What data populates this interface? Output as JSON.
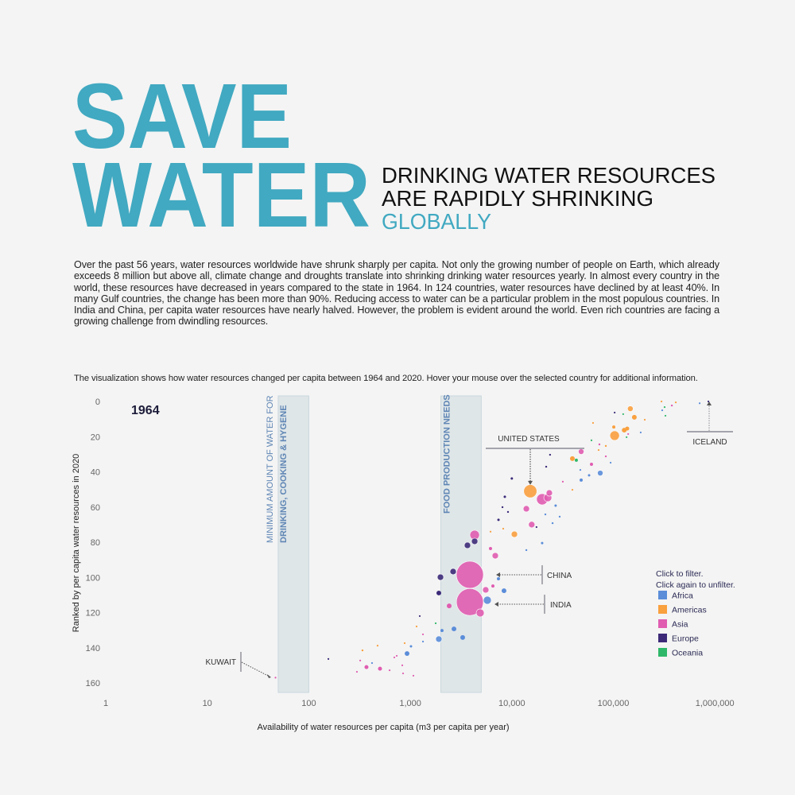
{
  "header": {
    "title_line1": "SAVE",
    "title_line2": "WATER",
    "subtitle_line1": "DRINKING WATER RESOURCES",
    "subtitle_line2": "ARE RAPIDLY SHRINKING",
    "subtitle_line3": "GLOBALLY",
    "accent_color": "#41a9c1"
  },
  "paragraph": "Over the past 56 years, water resources worldwide have shrunk sharply per capita. Not only the growing number of people on Earth, which already exceeds 8 million but above all, climate change and droughts translate into shrinking drinking water resources yearly. In almost every country in the world, these resources have decreased in years compared to the state in 1964. In 124 countries, water resources have declined by at least 40%. In many Gulf countries, the change has been more than 90%. Reducing access to water can be a particular problem in the most populous countries. In India and China, per capita water resources have nearly halved. However, the problem is evident around the world. Even rich countries are facing a growing challenge from dwindling resources.",
  "intro": "The visualization shows how water resources changed per capita between 1964 and 2020. Hover your mouse over the selected country for additional information.",
  "chart_data": {
    "type": "scatter",
    "year_label": "1964",
    "xlabel": "Availability of water resources per capita (m3 per capita per year)",
    "ylabel": "Ranked by per capita water resources in 2020",
    "x_scale": "log",
    "xlim": [
      1,
      1000000
    ],
    "ylim": [
      0,
      165
    ],
    "y_reversed": true,
    "x_ticks": [
      {
        "v": 1,
        "label": "1"
      },
      {
        "v": 10,
        "label": "10"
      },
      {
        "v": 100,
        "label": "100"
      },
      {
        "v": 1000,
        "label": "1,000"
      },
      {
        "v": 10000,
        "label": "10,000"
      },
      {
        "v": 100000,
        "label": "100,000"
      },
      {
        "v": 1000000,
        "label": "1,000,000"
      }
    ],
    "y_ticks": [
      0,
      20,
      40,
      60,
      80,
      100,
      120,
      140,
      160
    ],
    "bands": [
      {
        "from": 50,
        "to": 100,
        "label_line1": "MINIMUM AMOUNT OF WATER FOR",
        "label_line2": "DRINKING, COOKING & HYGENE"
      },
      {
        "from": 2000,
        "to": 5000,
        "label_line1": "FOOD PRODUCTION NEEDS"
      }
    ],
    "annotations": [
      {
        "label": "UNITED STATES",
        "x": 15200,
        "y": 51
      },
      {
        "label": "ICELAND",
        "x": 863000,
        "y": 0
      },
      {
        "label": "CHINA",
        "x": 3863,
        "y": 98.5
      },
      {
        "label": "INDIA",
        "x": 3863,
        "y": 114
      },
      {
        "label": "KUWAIT",
        "x": 47,
        "y": 157
      }
    ],
    "legend": {
      "hint_line1": "Click to filter.",
      "hint_line2": "Click again to unfilter.",
      "placement": "right",
      "items": [
        {
          "key": "A",
          "label": "Africa",
          "color": "#5b8dd9"
        },
        {
          "key": "M",
          "label": "Americas",
          "color": "#f9a03f"
        },
        {
          "key": "S",
          "label": "Asia",
          "color": "#e05cb0"
        },
        {
          "key": "E",
          "label": "Europe",
          "color": "#3c2a78"
        },
        {
          "key": "O",
          "label": "Oceania",
          "color": "#2fb86a"
        }
      ]
    },
    "size_field": "population_millions",
    "points": [
      {
        "x": 3863,
        "y": 98.5,
        "r": "S",
        "p": 1400
      },
      {
        "x": 3863,
        "y": 114,
        "r": "S",
        "p": 1380
      },
      {
        "x": 15200,
        "y": 51,
        "r": "M",
        "p": 330
      },
      {
        "x": 103000,
        "y": 19.4,
        "r": "M",
        "p": 174
      },
      {
        "x": 19900,
        "y": 55.6,
        "r": "S",
        "p": 240
      },
      {
        "x": 22600,
        "y": 54.7,
        "r": "S",
        "p": 121
      },
      {
        "x": 23400,
        "y": 52,
        "r": "S",
        "p": 77
      },
      {
        "x": 74300,
        "y": 40.7,
        "r": "A",
        "p": 60
      },
      {
        "x": 48200,
        "y": 28.5,
        "r": "S",
        "p": 60
      },
      {
        "x": 39500,
        "y": 32.5,
        "r": "M",
        "p": 43
      },
      {
        "x": 43200,
        "y": 33.4,
        "r": "O",
        "p": 19
      },
      {
        "x": 147000,
        "y": 4.1,
        "r": "M",
        "p": 60
      },
      {
        "x": 161000,
        "y": 9,
        "r": "M",
        "p": 43
      },
      {
        "x": 128000,
        "y": 16.3,
        "r": "M",
        "p": 43
      },
      {
        "x": 137000,
        "y": 15.4,
        "r": "M",
        "p": 30
      },
      {
        "x": 101000,
        "y": 14.5,
        "r": "M",
        "p": 19
      },
      {
        "x": 13900,
        "y": 61,
        "r": "S",
        "p": 77
      },
      {
        "x": 15700,
        "y": 70,
        "r": "S",
        "p": 77
      },
      {
        "x": 10600,
        "y": 75.5,
        "r": "M",
        "p": 77
      },
      {
        "x": 4304,
        "y": 75.9,
        "r": "S",
        "p": 174
      },
      {
        "x": 4304,
        "y": 79.5,
        "r": "E",
        "p": 77
      },
      {
        "x": 3656,
        "y": 81.8,
        "r": "E",
        "p": 77
      },
      {
        "x": 6871,
        "y": 87.7,
        "r": "S",
        "p": 77
      },
      {
        "x": 6166,
        "y": 83.6,
        "r": "S",
        "p": 19
      },
      {
        "x": 2642,
        "y": 96.7,
        "r": "E",
        "p": 77
      },
      {
        "x": 1982,
        "y": 99.9,
        "r": "E",
        "p": 77
      },
      {
        "x": 1910,
        "y": 108.9,
        "r": "E",
        "p": 43
      },
      {
        "x": 5534,
        "y": 107.1,
        "r": "S",
        "p": 77
      },
      {
        "x": 4880,
        "y": 120.2,
        "r": "S",
        "p": 121
      },
      {
        "x": 5740,
        "y": 113,
        "r": "A",
        "p": 121
      },
      {
        "x": 8375,
        "y": 107.6,
        "r": "A",
        "p": 43
      },
      {
        "x": 7385,
        "y": 100.8,
        "r": "A",
        "p": 19
      },
      {
        "x": 2692,
        "y": 129.3,
        "r": "A",
        "p": 43
      },
      {
        "x": 3281,
        "y": 134.2,
        "r": "A",
        "p": 43
      },
      {
        "x": 1910,
        "y": 135.1,
        "r": "A",
        "p": 77
      },
      {
        "x": 2052,
        "y": 130.2,
        "r": "A",
        "p": 19
      },
      {
        "x": 2415,
        "y": 116.2,
        "r": "S",
        "p": 43
      },
      {
        "x": 6511,
        "y": 104.9,
        "r": "S",
        "p": 19
      },
      {
        "x": 47,
        "y": 157,
        "r": "S",
        "p": 5
      },
      {
        "x": 156,
        "y": 146.4,
        "r": "E",
        "p": 5
      },
      {
        "x": 338,
        "y": 141.5,
        "r": "M",
        "p": 7
      },
      {
        "x": 476,
        "y": 138.8,
        "r": "M",
        "p": 5
      },
      {
        "x": 880,
        "y": 137.4,
        "r": "M",
        "p": 5
      },
      {
        "x": 1153,
        "y": 127.9,
        "r": "M",
        "p": 5
      },
      {
        "x": 929,
        "y": 143.3,
        "r": "A",
        "p": 43
      },
      {
        "x": 1016,
        "y": 139.2,
        "r": "A",
        "p": 11
      },
      {
        "x": 420,
        "y": 148.7,
        "r": "A",
        "p": 5
      },
      {
        "x": 1333,
        "y": 136.5,
        "r": "A",
        "p": 5
      },
      {
        "x": 370,
        "y": 151,
        "r": "S",
        "p": 30
      },
      {
        "x": 503,
        "y": 151.9,
        "r": "S",
        "p": 30
      },
      {
        "x": 321,
        "y": 147.3,
        "r": "S",
        "p": 5
      },
      {
        "x": 298,
        "y": 153.7,
        "r": "S",
        "p": 5
      },
      {
        "x": 625,
        "y": 152.8,
        "r": "S",
        "p": 5
      },
      {
        "x": 696,
        "y": 145.5,
        "r": "S",
        "p": 5
      },
      {
        "x": 735,
        "y": 144.6,
        "r": "S",
        "p": 5
      },
      {
        "x": 834,
        "y": 150,
        "r": "S",
        "p": 5
      },
      {
        "x": 849,
        "y": 154.6,
        "r": "S",
        "p": 5
      },
      {
        "x": 1073,
        "y": 155.9,
        "r": "S",
        "p": 5
      },
      {
        "x": 1333,
        "y": 132.4,
        "r": "S",
        "p": 5
      },
      {
        "x": 1239,
        "y": 122,
        "r": "E",
        "p": 5
      },
      {
        "x": 1778,
        "y": 126.1,
        "r": "O",
        "p": 5
      },
      {
        "x": 863000,
        "y": 0,
        "r": "E",
        "p": 5
      },
      {
        "x": 10000,
        "y": 43.8,
        "r": "E",
        "p": 11
      },
      {
        "x": 8530,
        "y": 54.2,
        "r": "E",
        "p": 11
      },
      {
        "x": 8090,
        "y": 60.1,
        "r": "E",
        "p": 7
      },
      {
        "x": 9170,
        "y": 62.8,
        "r": "E",
        "p": 7
      },
      {
        "x": 7390,
        "y": 67.3,
        "r": "E",
        "p": 11
      },
      {
        "x": 23800,
        "y": 30.3,
        "r": "E",
        "p": 7
      },
      {
        "x": 21800,
        "y": 37.1,
        "r": "E",
        "p": 7
      },
      {
        "x": 103000,
        "y": 6.3,
        "r": "E",
        "p": 5
      },
      {
        "x": 17500,
        "y": 71.4,
        "r": "E",
        "p": 5
      },
      {
        "x": 27000,
        "y": 59.2,
        "r": "A",
        "p": 11
      },
      {
        "x": 21400,
        "y": 64.2,
        "r": "A",
        "p": 7
      },
      {
        "x": 25200,
        "y": 69.2,
        "r": "A",
        "p": 7
      },
      {
        "x": 29600,
        "y": 65.5,
        "r": "A",
        "p": 7
      },
      {
        "x": 19900,
        "y": 80.5,
        "r": "A",
        "p": 11
      },
      {
        "x": 13900,
        "y": 84.5,
        "r": "A",
        "p": 7
      },
      {
        "x": 48200,
        "y": 44.7,
        "r": "A",
        "p": 19
      },
      {
        "x": 57700,
        "y": 42,
        "r": "A",
        "p": 11
      },
      {
        "x": 47300,
        "y": 38.9,
        "r": "A",
        "p": 5
      },
      {
        "x": 94000,
        "y": 34.8,
        "r": "A",
        "p": 5
      },
      {
        "x": 186000,
        "y": 17.6,
        "r": "A",
        "p": 5
      },
      {
        "x": 303000,
        "y": 5,
        "r": "A",
        "p": 5
      },
      {
        "x": 708000,
        "y": 1,
        "r": "A",
        "p": 5
      },
      {
        "x": 63100,
        "y": 12.2,
        "r": "M",
        "p": 5
      },
      {
        "x": 84300,
        "y": 25.3,
        "r": "M",
        "p": 7
      },
      {
        "x": 71600,
        "y": 27.6,
        "r": "M",
        "p": 5
      },
      {
        "x": 39500,
        "y": 50.2,
        "r": "M",
        "p": 5
      },
      {
        "x": 204000,
        "y": 10.4,
        "r": "M",
        "p": 5
      },
      {
        "x": 298000,
        "y": 0,
        "r": "M",
        "p": 5
      },
      {
        "x": 412000,
        "y": 0.5,
        "r": "M",
        "p": 5
      },
      {
        "x": 6170,
        "y": 74,
        "r": "M",
        "p": 5
      },
      {
        "x": 8230,
        "y": 72.3,
        "r": "M",
        "p": 5
      },
      {
        "x": 60900,
        "y": 35.7,
        "r": "S",
        "p": 19
      },
      {
        "x": 72900,
        "y": 24.4,
        "r": "S",
        "p": 7
      },
      {
        "x": 84300,
        "y": 31.2,
        "r": "S",
        "p": 7
      },
      {
        "x": 140000,
        "y": 18.5,
        "r": "S",
        "p": 5
      },
      {
        "x": 31800,
        "y": 45.6,
        "r": "S",
        "p": 5
      },
      {
        "x": 377000,
        "y": 2.3,
        "r": "S",
        "p": 7
      },
      {
        "x": 60900,
        "y": 22.1,
        "r": "O",
        "p": 5
      },
      {
        "x": 125000,
        "y": 7.2,
        "r": "O",
        "p": 5
      },
      {
        "x": 135000,
        "y": 20.3,
        "r": "O",
        "p": 5
      },
      {
        "x": 320000,
        "y": 3.2,
        "r": "O",
        "p": 5
      },
      {
        "x": 326000,
        "y": 8.1,
        "r": "O",
        "p": 5
      }
    ]
  }
}
